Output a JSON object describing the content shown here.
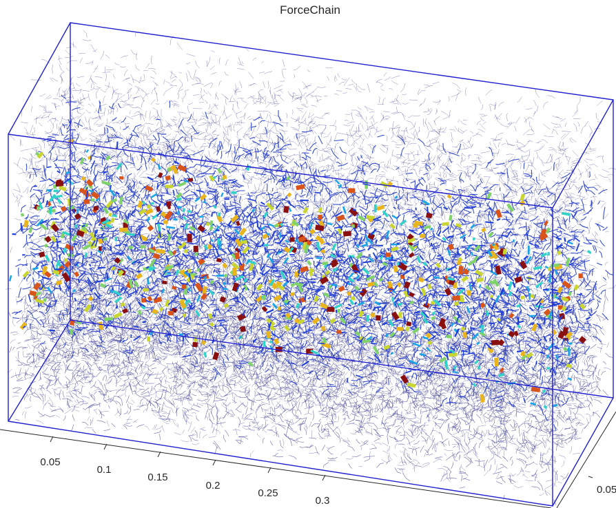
{
  "chart_data": {
    "type": "scatter",
    "title": "ForceChain",
    "xlabel": "",
    "ylabel": "",
    "zlabel": "",
    "x_ticks": [
      "0.05",
      "0.1",
      "0.15",
      "0.2",
      "0.25",
      "0.3"
    ],
    "y_ticks": [
      "0.05"
    ],
    "grid": false,
    "colors": {
      "box": "#1f1fd0",
      "chain_dense": "#0b0b7a",
      "chain_mid": "#1630c8",
      "colormap": [
        "#1f3fd9",
        "#1aa6e6",
        "#2fd3c8",
        "#7fd36a",
        "#c9d631",
        "#e8b51f",
        "#d9541a",
        "#8a1010"
      ]
    }
  }
}
